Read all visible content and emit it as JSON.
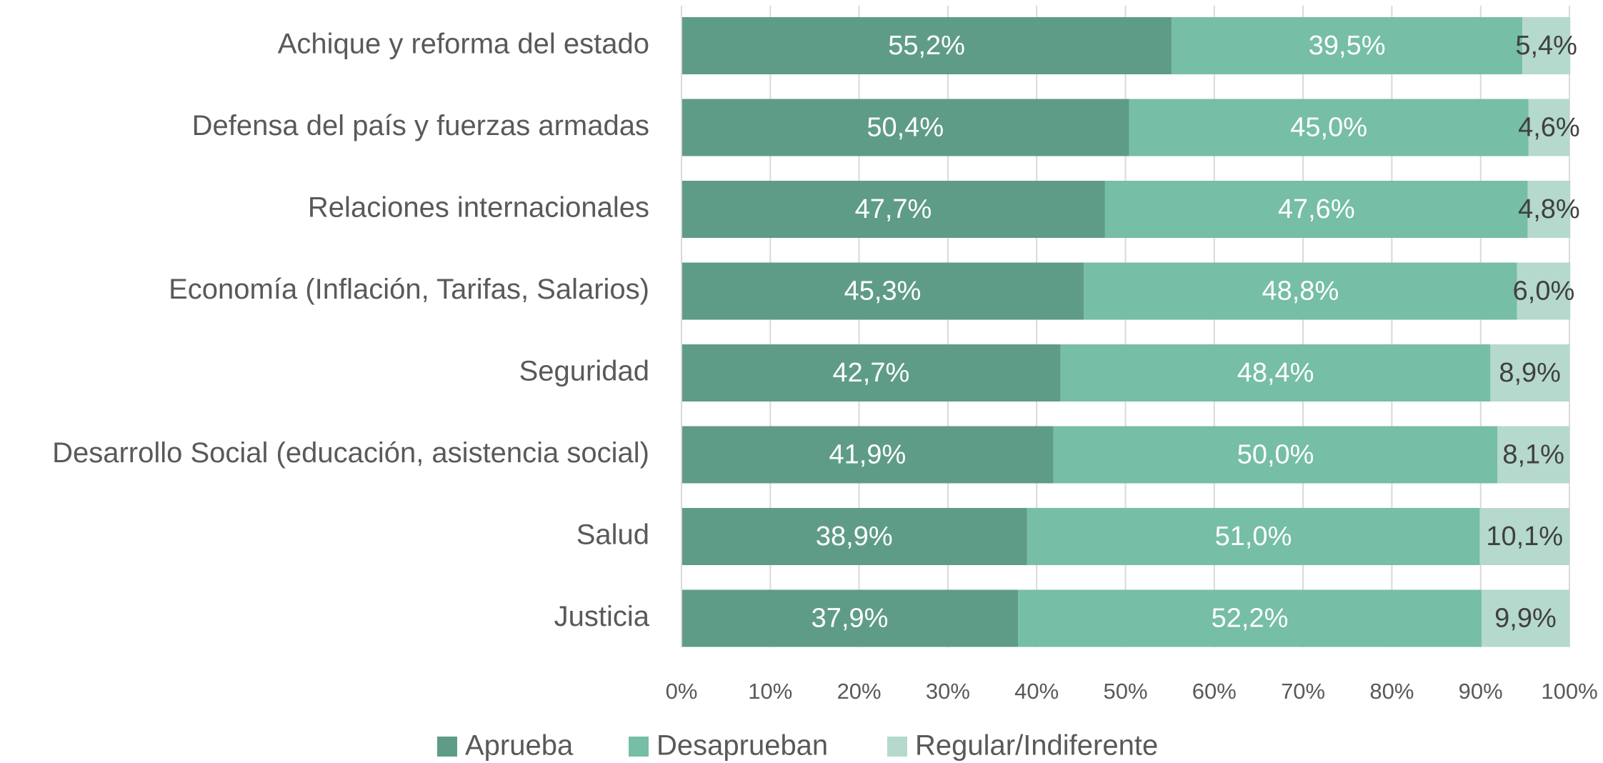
{
  "chart_data": {
    "type": "bar",
    "orientation": "horizontal",
    "stacked": true,
    "categories": [
      "Achique y reforma del estado",
      "Defensa del país y fuerzas armadas",
      "Relaciones internacionales",
      "Economía (Inflación, Tarifas, Salarios)",
      "Seguridad",
      "Desarrollo Social (educación, asistencia social)",
      "Salud",
      "Justicia"
    ],
    "series": [
      {
        "name": "Aprueba",
        "color": "#5f9c88",
        "values": [
          55.2,
          50.4,
          47.7,
          45.3,
          42.7,
          41.9,
          38.9,
          37.9
        ],
        "value_labels": [
          "55,2%",
          "50,4%",
          "47,7%",
          "45,3%",
          "42,7%",
          "41,9%",
          "38,9%",
          "37,9%"
        ]
      },
      {
        "name": "Desaprueban",
        "color": "#76bea6",
        "values": [
          39.5,
          45.0,
          47.6,
          48.8,
          48.4,
          50.0,
          51.0,
          52.2
        ],
        "value_labels": [
          "39,5%",
          "45,0%",
          "47,6%",
          "48,8%",
          "48,4%",
          "50,0%",
          "51,0%",
          "52,2%"
        ]
      },
      {
        "name": "Regular/Indiferente",
        "color": "#b5d9cc",
        "values": [
          5.4,
          4.6,
          4.8,
          6.0,
          8.9,
          8.1,
          10.1,
          9.9
        ],
        "value_labels": [
          "5,4%",
          "4,6%",
          "4,8%",
          "6,0%",
          "8,9%",
          "8,1%",
          "10,1%",
          "9,9%"
        ]
      }
    ],
    "xlim": [
      0,
      100
    ],
    "xticks": [
      {
        "value": 0,
        "label": "0%"
      },
      {
        "value": 10,
        "label": "10%"
      },
      {
        "value": 20,
        "label": "20%"
      },
      {
        "value": 30,
        "label": "30%"
      },
      {
        "value": 40,
        "label": "40%"
      },
      {
        "value": 50,
        "label": "50%"
      },
      {
        "value": 60,
        "label": "60%"
      },
      {
        "value": 70,
        "label": "70%"
      },
      {
        "value": 80,
        "label": "80%"
      },
      {
        "value": 90,
        "label": "90%"
      },
      {
        "value": 100,
        "label": "100%"
      }
    ],
    "grid": true,
    "legend": "bottom"
  }
}
